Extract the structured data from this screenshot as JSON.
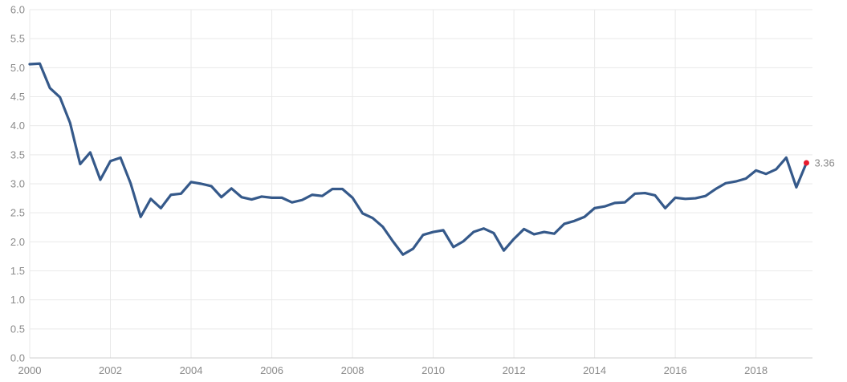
{
  "chart_data": {
    "type": "line",
    "title": "",
    "xlabel": "",
    "ylabel": "",
    "xlim": [
      2000,
      2019.4
    ],
    "ylim": [
      0,
      6
    ],
    "grid": true,
    "legend": "none",
    "x_ticks": [
      "2000",
      "2002",
      "2004",
      "2006",
      "2008",
      "2010",
      "2012",
      "2014",
      "2016",
      "2018"
    ],
    "y_ticks": [
      "0.0",
      "0.5",
      "1.0",
      "1.5",
      "2.0",
      "2.5",
      "3.0",
      "3.5",
      "4.0",
      "4.5",
      "5.0",
      "5.5",
      "6.0"
    ],
    "colors": {
      "line": "#35598a",
      "last_point": "#e8192c",
      "grid": "#e9e9e9",
      "text": "#8a8a8a"
    },
    "last_value_label": "3.36",
    "series": [
      {
        "x": [
          2000.0,
          2000.25,
          2000.5,
          2000.75,
          2001.0,
          2001.25,
          2001.5,
          2001.75,
          2002.0,
          2002.25,
          2002.5,
          2002.75,
          2003.0,
          2003.25,
          2003.5,
          2003.75,
          2004.0,
          2004.25,
          2004.5,
          2004.75,
          2005.0,
          2005.25,
          2005.5,
          2005.75,
          2006.0,
          2006.25,
          2006.5,
          2006.75,
          2007.0,
          2007.25,
          2007.5,
          2007.75,
          2008.0,
          2008.25,
          2008.5,
          2008.75,
          2009.0,
          2009.25,
          2009.5,
          2009.75,
          2010.0,
          2010.25,
          2010.5,
          2010.75,
          2011.0,
          2011.25,
          2011.5,
          2011.75,
          2012.0,
          2012.25,
          2012.5,
          2012.75,
          2013.0,
          2013.25,
          2013.5,
          2013.75,
          2014.0,
          2014.25,
          2014.5,
          2014.75,
          2015.0,
          2015.25,
          2015.5,
          2015.75,
          2016.0,
          2016.25,
          2016.5,
          2016.75,
          2017.0,
          2017.25,
          2017.5,
          2017.75,
          2018.0,
          2018.25,
          2018.5,
          2018.75,
          2019.0,
          2019.25
        ],
        "values": [
          5.06,
          5.07,
          4.65,
          4.49,
          4.05,
          3.34,
          3.54,
          3.07,
          3.39,
          3.45,
          3.01,
          2.43,
          2.74,
          2.58,
          2.81,
          2.83,
          3.03,
          3.0,
          2.96,
          2.77,
          2.92,
          2.77,
          2.73,
          2.78,
          2.76,
          2.76,
          2.68,
          2.72,
          2.81,
          2.79,
          2.91,
          2.91,
          2.76,
          2.49,
          2.41,
          2.26,
          2.01,
          1.78,
          1.88,
          2.12,
          2.17,
          2.2,
          1.91,
          2.01,
          2.17,
          2.23,
          2.15,
          1.85,
          2.05,
          2.22,
          2.13,
          2.17,
          2.14,
          2.31,
          2.36,
          2.43,
          2.58,
          2.61,
          2.67,
          2.68,
          2.83,
          2.84,
          2.8,
          2.58,
          2.76,
          2.74,
          2.75,
          2.79,
          2.91,
          3.01,
          3.04,
          3.09,
          3.23,
          3.17,
          3.25,
          3.45,
          2.94,
          3.36
        ]
      }
    ]
  }
}
